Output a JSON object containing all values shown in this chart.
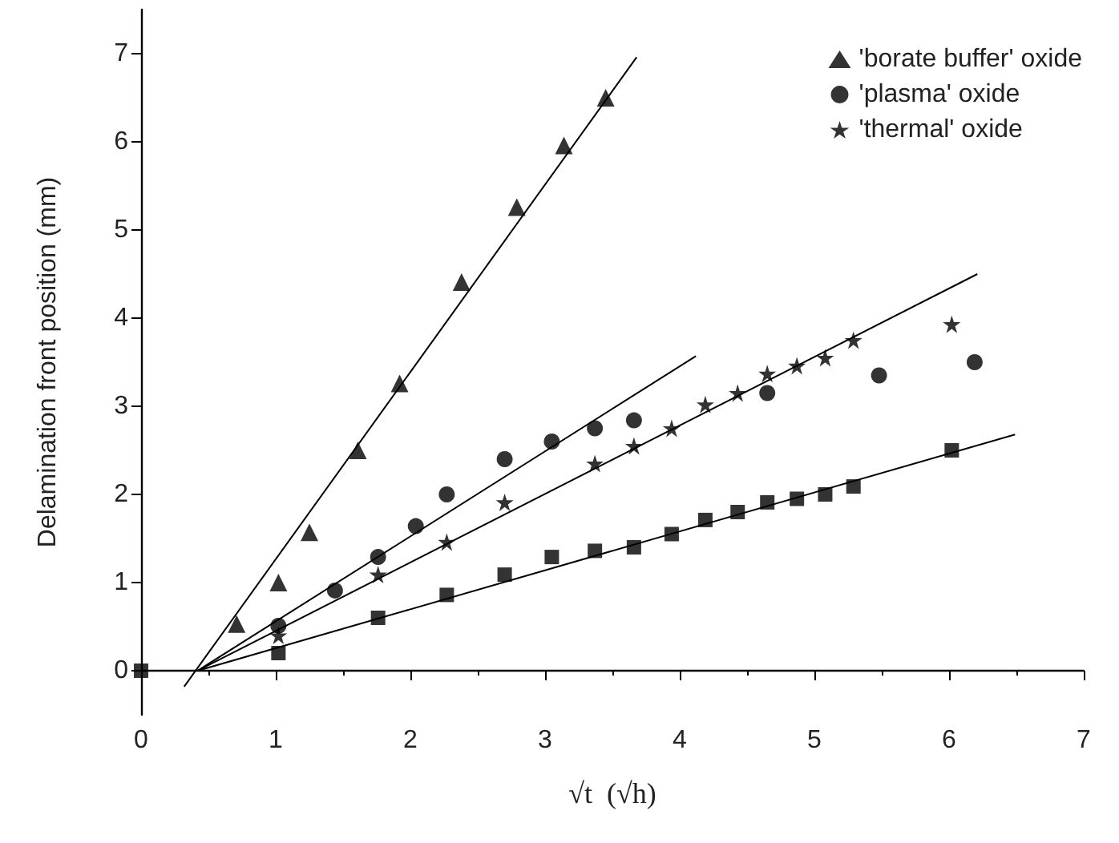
{
  "chart_data": {
    "type": "scatter",
    "xlabel": "√t  (√h)",
    "ylabel": "Delamination front position (mm)",
    "xlim": [
      0,
      7
    ],
    "xticks": [
      0,
      1,
      2,
      3,
      4,
      5,
      6,
      7
    ],
    "ylim": [
      -0.5,
      7.5
    ],
    "yticks": [
      0,
      1,
      2,
      3,
      4,
      5,
      6,
      7
    ],
    "grid": false,
    "legend": "top right",
    "series": [
      {
        "name": "'borate buffer' oxide",
        "color": "#000000",
        "marker": "triangle",
        "x": [
          0.71,
          1.02,
          1.25,
          1.61,
          1.92,
          2.38,
          2.79,
          3.14,
          3.45
        ],
        "values": [
          0.53,
          1.0,
          1.57,
          2.5,
          3.26,
          4.41,
          5.26,
          5.96,
          6.5
        ]
      },
      {
        "name": "'plasma' oxide",
        "color": "#000000",
        "marker": "circle",
        "x": [
          1.02,
          1.44,
          1.76,
          2.04,
          2.27,
          2.7,
          3.05,
          3.37,
          3.66,
          4.65,
          5.48,
          6.19
        ],
        "values": [
          0.51,
          0.91,
          1.29,
          1.64,
          2.0,
          2.4,
          2.6,
          2.75,
          2.84,
          3.15,
          3.35,
          3.5
        ]
      },
      {
        "name": "'thermal' oxide",
        "color": "#000000",
        "marker": "star",
        "x": [
          1.02,
          1.76,
          2.27,
          2.7,
          3.37,
          3.66,
          3.94,
          4.19,
          4.43,
          4.65,
          4.87,
          5.08,
          5.29,
          6.02
        ],
        "values": [
          0.4,
          1.09,
          1.46,
          1.91,
          2.35,
          2.55,
          2.75,
          3.02,
          3.15,
          3.37,
          3.46,
          3.55,
          3.75,
          3.93
        ]
      },
      {
        "color": "#000000",
        "marker": "square",
        "x": [
          0,
          1.02,
          1.76,
          2.27,
          2.7,
          3.05,
          3.37,
          3.66,
          3.94,
          4.19,
          4.43,
          4.65,
          4.87,
          5.08,
          5.29,
          6.02
        ],
        "values": [
          0,
          0.2,
          0.6,
          0.86,
          1.09,
          1.29,
          1.36,
          1.4,
          1.55,
          1.71,
          1.8,
          1.91,
          1.95,
          2.0,
          2.09,
          2.5
        ]
      },
      {
        "type": "line",
        "color": "#000000",
        "marker": "none",
        "x": [
          0.32,
          3.68
        ],
        "values": [
          -0.18,
          6.96
        ]
      },
      {
        "type": "line",
        "color": "#000000",
        "marker": "none",
        "x": [
          0.42,
          4.12
        ],
        "values": [
          0,
          3.57
        ]
      },
      {
        "type": "line",
        "color": "#000000",
        "marker": "none",
        "x": [
          0.42,
          6.21
        ],
        "values": [
          0,
          4.5
        ]
      },
      {
        "type": "line",
        "color": "#000000",
        "marker": "none",
        "x": [
          0.42,
          6.49
        ],
        "values": [
          0,
          2.68
        ]
      }
    ]
  }
}
